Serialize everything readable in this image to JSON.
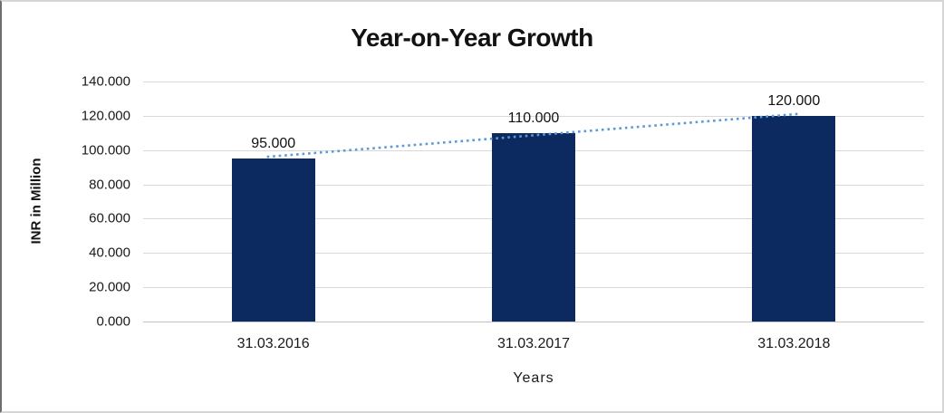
{
  "chart_data": {
    "type": "bar",
    "title": "Year-on-Year Growth",
    "xlabel": "Years",
    "ylabel": "INR in Million",
    "categories": [
      "31.03.2016",
      "31.03.2017",
      "31.03.2018"
    ],
    "values": [
      95,
      110,
      120
    ],
    "value_labels": [
      "95.000",
      "110.000",
      "120.000"
    ],
    "series": [
      {
        "name": "Year-on-Year Growth",
        "values": [
          95,
          110,
          120
        ]
      }
    ],
    "ylim": [
      0,
      140
    ],
    "yticks": [
      0,
      20,
      40,
      60,
      80,
      100,
      120,
      140
    ],
    "ytick_labels_top_to_bottom": [
      "140.000",
      "120.000",
      "100.000",
      "80.000",
      "60.000",
      "40.000",
      "20.000",
      "0.000"
    ],
    "grid": true,
    "legend_position": "none",
    "bar_color": "#0C2A60",
    "trendline": {
      "style": "dotted",
      "color": "#5B9BD5"
    },
    "gridline_color": "#D9D9D9"
  }
}
